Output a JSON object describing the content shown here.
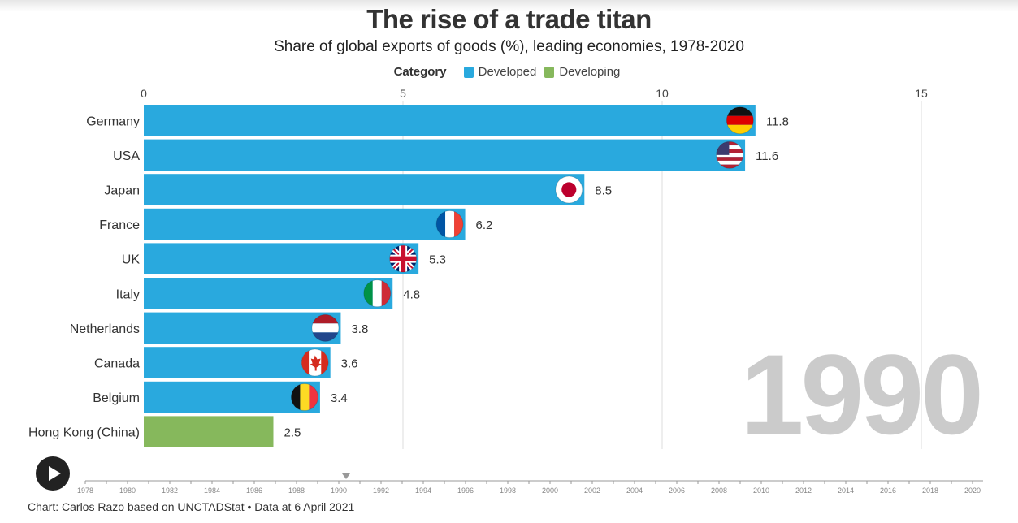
{
  "header": {
    "title": "The rise of a trade titan",
    "subtitle": "Share of global exports of goods (%), leading economies, 1978-2020"
  },
  "legend": {
    "title": "Category",
    "items": [
      {
        "label": "Developed",
        "color": "#29a9de"
      },
      {
        "label": "Developing",
        "color": "#86b85c"
      }
    ]
  },
  "current_year": "1990",
  "credit": "Chart: Carlos Razo based on UNCTADStat • Data at 6 April 2021",
  "timeline": {
    "years": [
      "1978",
      "1980",
      "1982",
      "1984",
      "1986",
      "1988",
      "1990",
      "1992",
      "1994",
      "1996",
      "1998",
      "2000",
      "2002",
      "2004",
      "2006",
      "2008",
      "2010",
      "2012",
      "2014",
      "2016",
      "2018",
      "2020"
    ],
    "selected": "1990"
  },
  "chart_data": {
    "type": "bar",
    "orientation": "horizontal",
    "categories": [
      "Germany",
      "USA",
      "Japan",
      "France",
      "UK",
      "Italy",
      "Netherlands",
      "Canada",
      "Belgium",
      "Hong Kong (China)"
    ],
    "values": [
      11.8,
      11.6,
      8.5,
      6.2,
      5.3,
      4.8,
      3.8,
      3.6,
      3.4,
      2.5
    ],
    "value_labels": [
      "11.8",
      "11.6",
      "8.5",
      "6.2",
      "5.3",
      "4.8",
      "3.8",
      "3.6",
      "3.4",
      "2.5"
    ],
    "group": [
      "Developed",
      "Developed",
      "Developed",
      "Developed",
      "Developed",
      "Developed",
      "Developed",
      "Developed",
      "Developed",
      "Developing"
    ],
    "flags": [
      "germany-flag-icon",
      "usa-flag-icon",
      "japan-flag-icon",
      "france-flag-icon",
      "uk-flag-icon",
      "italy-flag-icon",
      "netherlands-flag-icon",
      "canada-flag-icon",
      "belgium-flag-icon",
      ""
    ],
    "xlim": [
      0,
      16
    ],
    "xticks": [
      0,
      5,
      10,
      15
    ],
    "xtick_labels": [
      "0",
      "5",
      "10",
      "15"
    ],
    "grid": true,
    "legend_position": "top-center"
  }
}
